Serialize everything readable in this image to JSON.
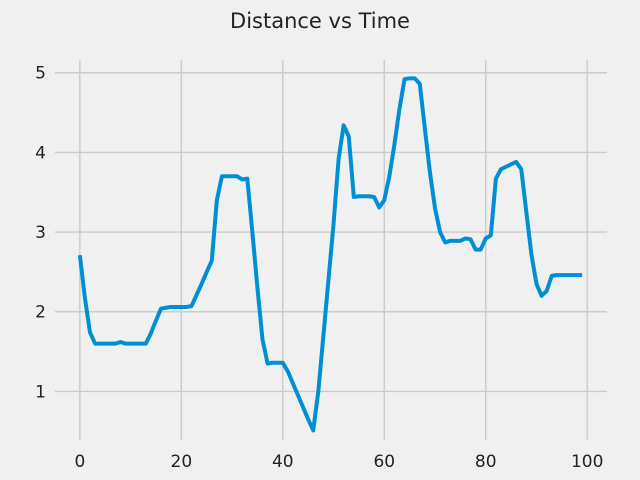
{
  "chart_data": {
    "type": "line",
    "title": "Distance vs Time",
    "xlabel": "",
    "ylabel": "",
    "xlim": [
      -4.9,
      103.9
    ],
    "ylim": [
      0.39,
      5.16
    ],
    "xticks": [
      0,
      20,
      40,
      60,
      80,
      100
    ],
    "yticks": [
      1,
      2,
      3,
      4,
      5
    ],
    "grid": true,
    "legend": "none",
    "colors": {
      "background": "#f0f0f0",
      "line": "#008fd5",
      "grid": "#cbcbcb",
      "text": "#222222"
    },
    "series": [
      {
        "x": [
          0,
          1,
          2,
          3,
          4,
          5,
          6,
          7,
          8,
          9,
          10,
          11,
          12,
          13,
          14,
          15,
          16,
          17,
          18,
          19,
          20,
          21,
          22,
          23,
          24,
          25,
          26,
          27,
          28,
          29,
          30,
          31,
          32,
          33,
          34,
          35,
          36,
          37,
          38,
          39,
          40,
          41,
          42,
          43,
          44,
          45,
          46,
          47,
          48,
          49,
          50,
          51,
          52,
          53,
          54,
          55,
          56,
          57,
          58,
          59,
          60,
          61,
          62,
          63,
          64,
          65,
          66,
          67,
          68,
          69,
          70,
          71,
          72,
          73,
          74,
          75,
          76,
          77,
          78,
          79,
          80,
          81,
          82,
          83,
          84,
          85,
          86,
          87,
          88,
          89,
          90,
          91,
          92,
          93,
          94,
          95,
          96,
          97,
          98,
          99
        ],
        "values": [
          2.71,
          2.17,
          1.74,
          1.6,
          1.6,
          1.6,
          1.6,
          1.6,
          1.62,
          1.6,
          1.6,
          1.6,
          1.6,
          1.6,
          1.73,
          1.89,
          2.04,
          2.05,
          2.06,
          2.06,
          2.06,
          2.06,
          2.07,
          2.21,
          2.35,
          2.5,
          2.64,
          3.4,
          3.7,
          3.7,
          3.7,
          3.7,
          3.66,
          3.67,
          3.0,
          2.3,
          1.65,
          1.35,
          1.36,
          1.36,
          1.36,
          1.25,
          1.1,
          0.95,
          0.8,
          0.65,
          0.51,
          1.0,
          1.7,
          2.4,
          3.1,
          3.92,
          4.34,
          4.2,
          3.44,
          3.45,
          3.45,
          3.45,
          3.44,
          3.31,
          3.4,
          3.7,
          4.1,
          4.55,
          4.92,
          4.93,
          4.93,
          4.86,
          4.3,
          3.75,
          3.3,
          3.0,
          2.87,
          2.89,
          2.89,
          2.89,
          2.92,
          2.91,
          2.78,
          2.78,
          2.92,
          2.96,
          3.67,
          3.79,
          3.82,
          3.85,
          3.88,
          3.79,
          3.25,
          2.72,
          2.35,
          2.2,
          2.26,
          2.45,
          2.46,
          2.46,
          2.46,
          2.46,
          2.46,
          2.46
        ]
      }
    ]
  }
}
